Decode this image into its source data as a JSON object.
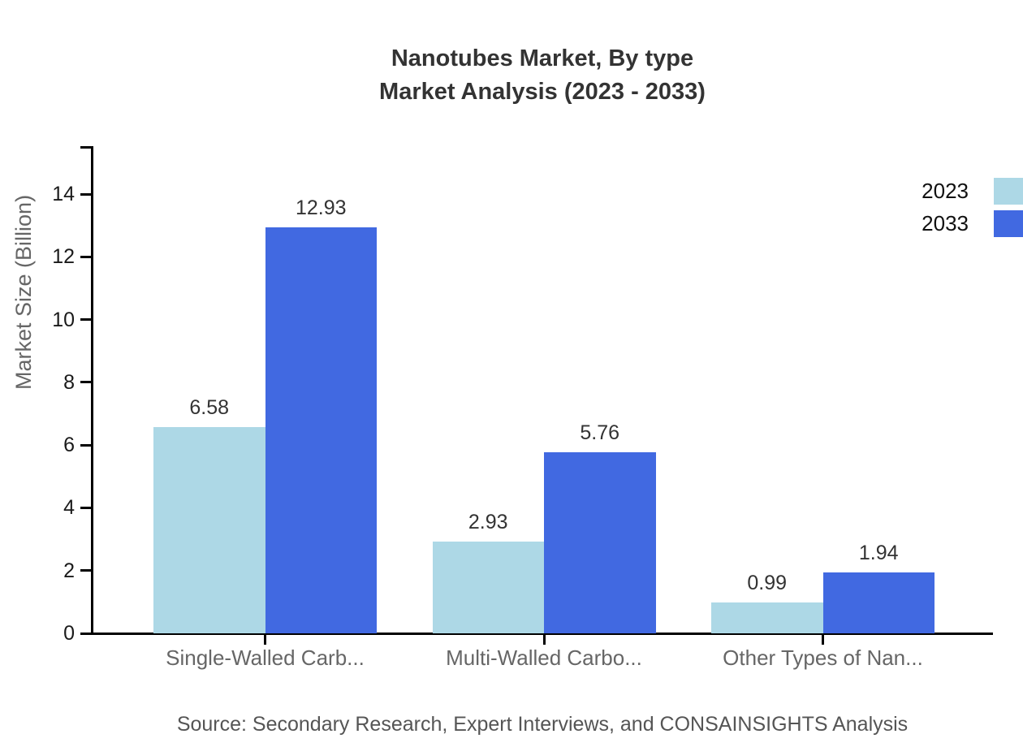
{
  "title": {
    "line1": "Nanotubes Market, By type",
    "line2": "Market Analysis (2023 - 2033)"
  },
  "chart_data": {
    "type": "bar",
    "title": "Nanotubes Market, By type — Market Analysis (2023 - 2033)",
    "ylabel": "Market Size (Billion)",
    "xlabel": "",
    "categories": [
      "Single-Walled Carb...",
      "Multi-Walled Carbo...",
      "Other Types of Nan..."
    ],
    "series": [
      {
        "name": "2023",
        "color": "#ADD8E6",
        "values": [
          6.58,
          2.93,
          0.99
        ]
      },
      {
        "name": "2033",
        "color": "#4169E1",
        "values": [
          12.93,
          5.76,
          1.94
        ]
      }
    ],
    "value_labels": [
      "6.58",
      "12.93",
      "2.93",
      "5.76",
      "0.99",
      "1.94"
    ],
    "ylim": [
      0,
      15.5
    ],
    "yticks": [
      0,
      2,
      4,
      6,
      8,
      10,
      12,
      14
    ],
    "grid": false,
    "legend_position": "top-right"
  },
  "source_note": "Source: Secondary Research, Expert Interviews, and CONSAINSIGHTS Analysis",
  "colors": {
    "series_2023": "#ADD8E6",
    "series_2033": "#4169E1",
    "axis": "#000000",
    "title_text": "#333333",
    "tick_text": "#1a1a1a",
    "category_text": "#666666",
    "source_text": "#555555"
  }
}
